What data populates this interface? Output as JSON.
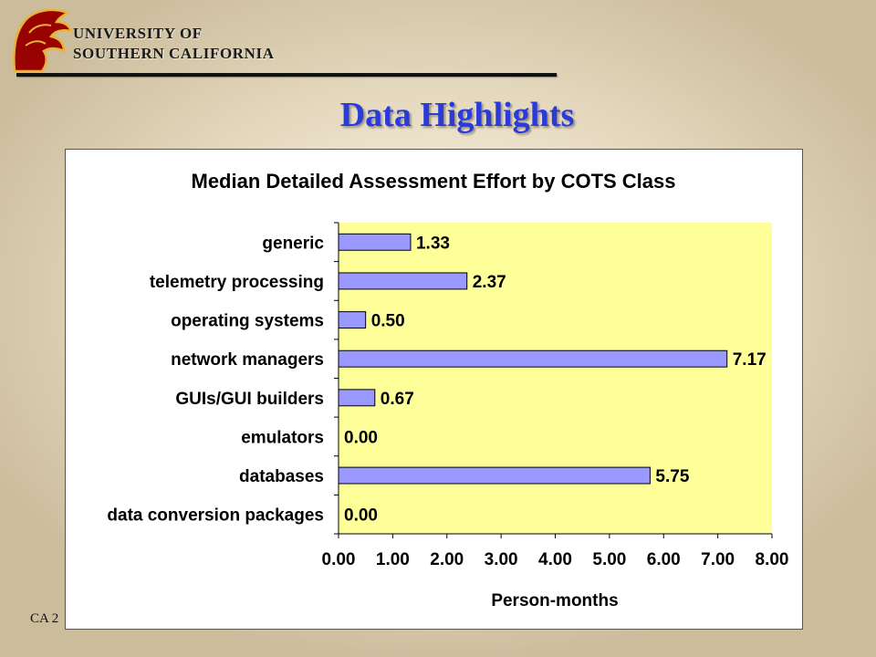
{
  "header": {
    "university_line1": "UNIVERSITY OF",
    "university_line2": "SOUTHERN CALIFORNIA",
    "slide_title": "Data Highlights"
  },
  "footer": {
    "text": "CA 2"
  },
  "colors": {
    "title": "#2b3bd8",
    "plot_area": "#ffff99",
    "bar_fill": "#9999ff",
    "logo_red": "#990000",
    "logo_gold": "#e8b437"
  },
  "chart_data": {
    "type": "bar",
    "orientation": "horizontal",
    "title": "Median Detailed Assessment Effort by COTS Class",
    "xlabel": "Person-months",
    "ylabel": "",
    "categories": [
      "generic",
      "telemetry processing",
      "operating systems",
      "network managers",
      "GUIs/GUI builders",
      "emulators",
      "databases",
      "data conversion packages"
    ],
    "values": [
      1.33,
      2.37,
      0.5,
      7.17,
      0.67,
      0.0,
      5.75,
      0.0
    ],
    "data_labels": [
      "1.33",
      "2.37",
      "0.50",
      "7.17",
      "0.67",
      "0.00",
      "5.75",
      "0.00"
    ],
    "xlim": [
      0,
      8
    ],
    "x_ticks": [
      "0.00",
      "1.00",
      "2.00",
      "3.00",
      "4.00",
      "5.00",
      "6.00",
      "7.00",
      "8.00"
    ],
    "grid": false,
    "legend": "none"
  }
}
